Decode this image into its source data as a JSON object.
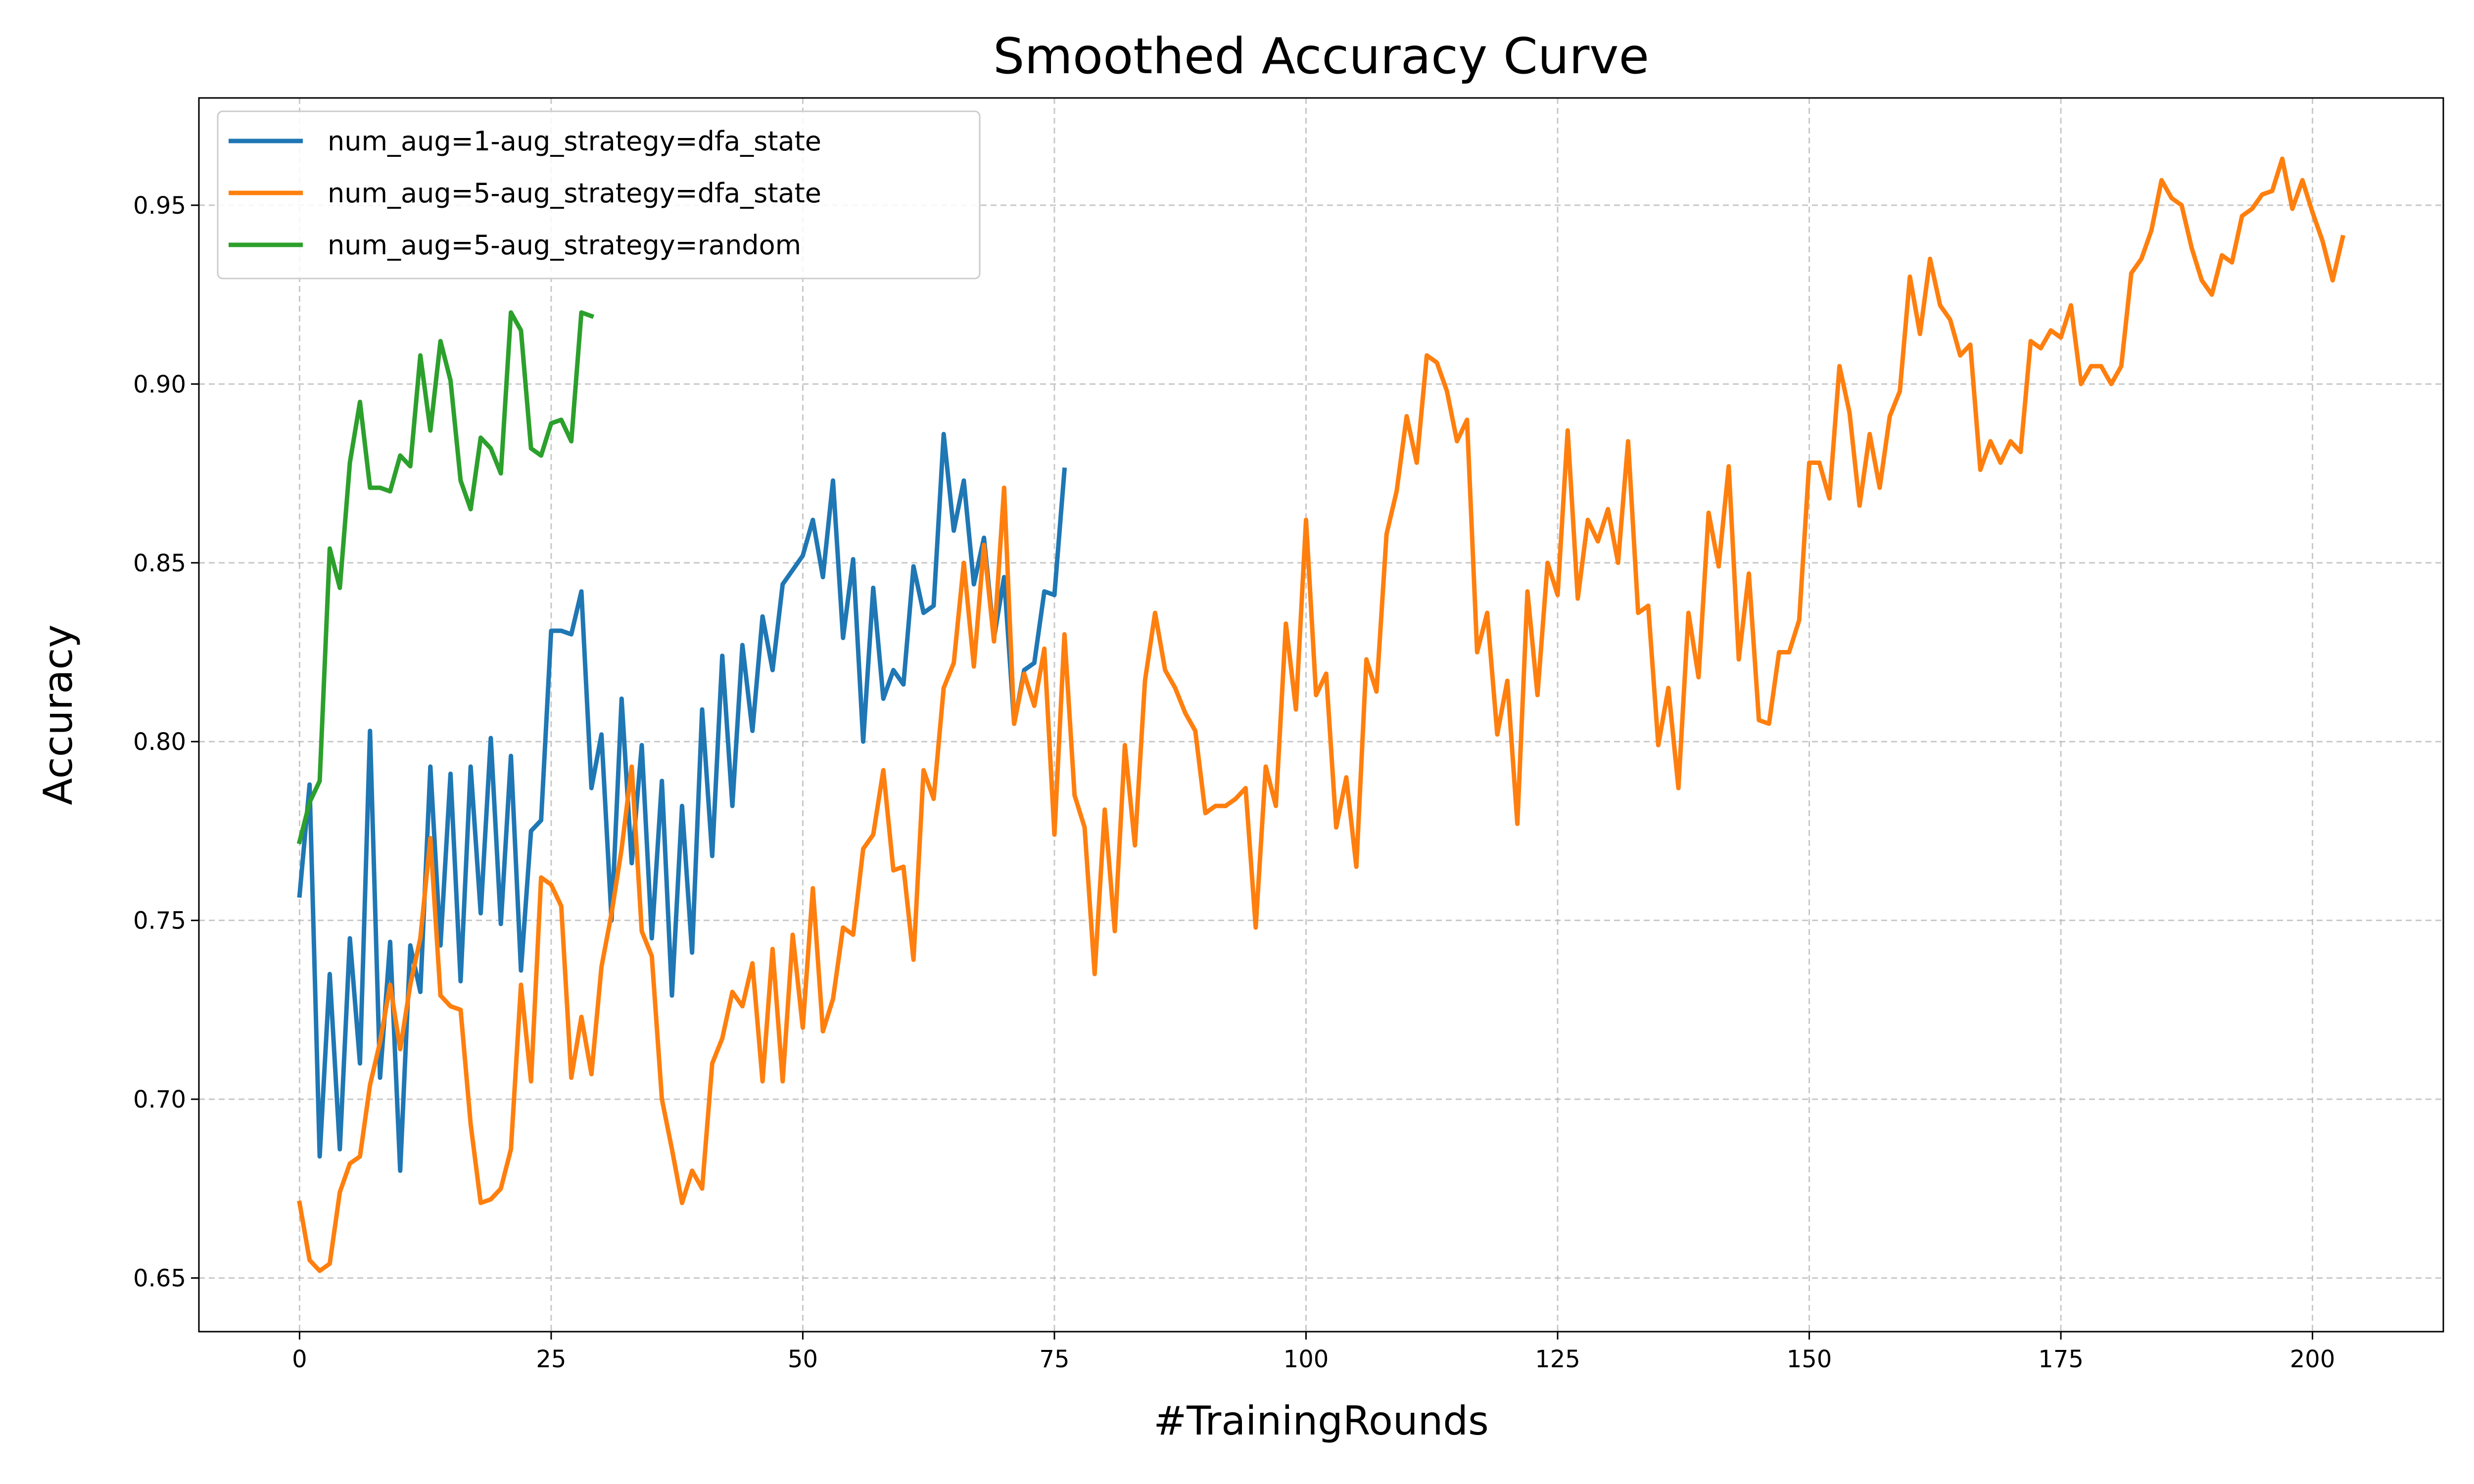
{
  "chart_data": {
    "type": "line",
    "title": "Smoothed Accuracy Curve",
    "xlabel": "#TrainingRounds",
    "ylabel": "Accuracy",
    "xlim": [
      -10,
      213
    ],
    "ylim": [
      0.635,
      0.98
    ],
    "x_ticks": [
      0,
      25,
      50,
      75,
      100,
      125,
      150,
      175,
      200
    ],
    "x_tick_labels": [
      "0",
      "25",
      "50",
      "75",
      "100",
      "125",
      "150",
      "175",
      "200"
    ],
    "y_ticks": [
      0.65,
      0.7,
      0.75,
      0.8,
      0.85,
      0.9,
      0.95
    ],
    "y_tick_labels": [
      "0.65",
      "0.70",
      "0.75",
      "0.80",
      "0.85",
      "0.90",
      "0.95"
    ],
    "grid": true,
    "legend_position": "top-left",
    "series": [
      {
        "name": "num_aug=1-aug_strategy=dfa_state",
        "color": "#1f77b4",
        "values": [
          0.757,
          0.788,
          0.684,
          0.735,
          0.686,
          0.745,
          0.71,
          0.803,
          0.706,
          0.744,
          0.68,
          0.743,
          0.73,
          0.793,
          0.743,
          0.791,
          0.733,
          0.793,
          0.752,
          0.801,
          0.749,
          0.796,
          0.736,
          0.775,
          0.778,
          0.831,
          0.831,
          0.83,
          0.842,
          0.787,
          0.802,
          0.75,
          0.812,
          0.766,
          0.799,
          0.745,
          0.789,
          0.729,
          0.782,
          0.741,
          0.809,
          0.768,
          0.824,
          0.782,
          0.827,
          0.803,
          0.835,
          0.82,
          0.844,
          0.848,
          0.852,
          0.862,
          0.846,
          0.873,
          0.829,
          0.851,
          0.8,
          0.843,
          0.812,
          0.82,
          0.816,
          0.849,
          0.836,
          0.838,
          0.886,
          0.859,
          0.873,
          0.844,
          0.857,
          0.829,
          0.846,
          0.805,
          0.82,
          0.822,
          0.842,
          0.841,
          0.876
        ]
      },
      {
        "name": "num_aug=5-aug_strategy=dfa_state",
        "color": "#ff7f0e",
        "values": [
          0.671,
          0.655,
          0.652,
          0.654,
          0.674,
          0.682,
          0.684,
          0.704,
          0.716,
          0.732,
          0.714,
          0.732,
          0.745,
          0.773,
          0.729,
          0.726,
          0.725,
          0.693,
          0.671,
          0.672,
          0.675,
          0.686,
          0.732,
          0.705,
          0.762,
          0.76,
          0.754,
          0.706,
          0.723,
          0.707,
          0.737,
          0.752,
          0.77,
          0.793,
          0.747,
          0.74,
          0.7,
          0.686,
          0.671,
          0.68,
          0.675,
          0.71,
          0.717,
          0.73,
          0.726,
          0.738,
          0.705,
          0.742,
          0.705,
          0.746,
          0.72,
          0.759,
          0.719,
          0.728,
          0.748,
          0.746,
          0.77,
          0.774,
          0.792,
          0.764,
          0.765,
          0.739,
          0.792,
          0.784,
          0.815,
          0.822,
          0.85,
          0.821,
          0.855,
          0.828,
          0.871,
          0.805,
          0.819,
          0.81,
          0.826,
          0.774,
          0.83,
          0.785,
          0.776,
          0.735,
          0.781,
          0.747,
          0.799,
          0.771,
          0.817,
          0.836,
          0.82,
          0.815,
          0.808,
          0.803,
          0.78,
          0.782,
          0.782,
          0.784,
          0.787,
          0.748,
          0.793,
          0.782,
          0.833,
          0.809,
          0.862,
          0.813,
          0.819,
          0.776,
          0.79,
          0.765,
          0.823,
          0.814,
          0.858,
          0.87,
          0.891,
          0.878,
          0.908,
          0.906,
          0.898,
          0.884,
          0.89,
          0.825,
          0.836,
          0.802,
          0.817,
          0.777,
          0.842,
          0.813,
          0.85,
          0.841,
          0.887,
          0.84,
          0.862,
          0.856,
          0.865,
          0.85,
          0.884,
          0.836,
          0.838,
          0.799,
          0.815,
          0.787,
          0.836,
          0.818,
          0.864,
          0.849,
          0.877,
          0.823,
          0.847,
          0.806,
          0.805,
          0.825,
          0.825,
          0.834,
          0.878,
          0.878,
          0.868,
          0.905,
          0.892,
          0.866,
          0.886,
          0.871,
          0.891,
          0.898,
          0.93,
          0.914,
          0.935,
          0.922,
          0.918,
          0.908,
          0.911,
          0.876,
          0.884,
          0.878,
          0.884,
          0.881,
          0.912,
          0.91,
          0.915,
          0.913,
          0.922,
          0.9,
          0.905,
          0.905,
          0.9,
          0.905,
          0.931,
          0.935,
          0.943,
          0.957,
          0.952,
          0.95,
          0.938,
          0.929,
          0.925,
          0.936,
          0.934,
          0.947,
          0.949,
          0.953,
          0.954,
          0.963,
          0.949,
          0.957,
          0.948,
          0.94,
          0.929,
          0.941
        ]
      },
      {
        "name": "num_aug=5-aug_strategy=random",
        "color": "#2ca02c",
        "values": [
          0.772,
          0.783,
          0.789,
          0.854,
          0.843,
          0.878,
          0.895,
          0.871,
          0.871,
          0.87,
          0.88,
          0.877,
          0.908,
          0.887,
          0.912,
          0.901,
          0.873,
          0.865,
          0.885,
          0.882,
          0.875,
          0.92,
          0.915,
          0.882,
          0.88,
          0.889,
          0.89,
          0.884,
          0.92,
          0.919
        ]
      }
    ]
  }
}
